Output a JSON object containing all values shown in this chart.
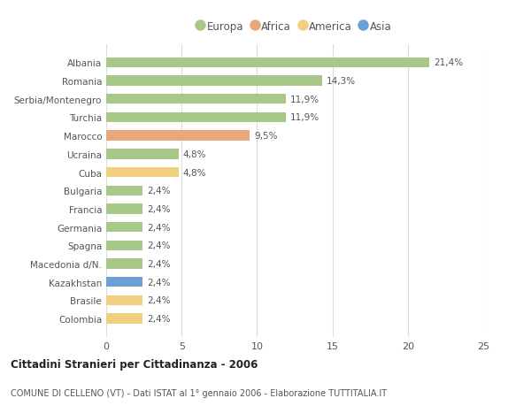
{
  "countries": [
    "Albania",
    "Romania",
    "Serbia/Montenegro",
    "Turchia",
    "Marocco",
    "Ucraina",
    "Cuba",
    "Bulgaria",
    "Francia",
    "Germania",
    "Spagna",
    "Macedonia d/N.",
    "Kazakhstan",
    "Brasile",
    "Colombia"
  ],
  "values": [
    21.4,
    14.3,
    11.9,
    11.9,
    9.5,
    4.8,
    4.8,
    2.4,
    2.4,
    2.4,
    2.4,
    2.4,
    2.4,
    2.4,
    2.4
  ],
  "labels": [
    "21,4%",
    "14,3%",
    "11,9%",
    "11,9%",
    "9,5%",
    "4,8%",
    "4,8%",
    "2,4%",
    "2,4%",
    "2,4%",
    "2,4%",
    "2,4%",
    "2,4%",
    "2,4%",
    "2,4%"
  ],
  "colors": [
    "#a8c88a",
    "#a8c88a",
    "#a8c88a",
    "#a8c88a",
    "#e8a87c",
    "#a8c88a",
    "#f0d080",
    "#a8c88a",
    "#a8c88a",
    "#a8c88a",
    "#a8c88a",
    "#a8c88a",
    "#6a9fd8",
    "#f0d080",
    "#f0d080"
  ],
  "legend": [
    {
      "label": "Europa",
      "color": "#a8c88a"
    },
    {
      "label": "Africa",
      "color": "#e8a87c"
    },
    {
      "label": "America",
      "color": "#f0d080"
    },
    {
      "label": "Asia",
      "color": "#6a9fd8"
    }
  ],
  "xlim": [
    0,
    25
  ],
  "xticks": [
    0,
    5,
    10,
    15,
    20,
    25
  ],
  "title_main": "Cittadini Stranieri per Cittadinanza - 2006",
  "title_sub": "COMUNE DI CELLENO (VT) - Dati ISTAT al 1° gennaio 2006 - Elaborazione TUTTITALIA.IT",
  "bar_height": 0.55,
  "background_color": "#ffffff",
  "grid_color": "#dddddd",
  "text_color": "#555555",
  "label_fontsize": 7.5,
  "tick_fontsize": 8.0,
  "value_fontsize": 7.5
}
